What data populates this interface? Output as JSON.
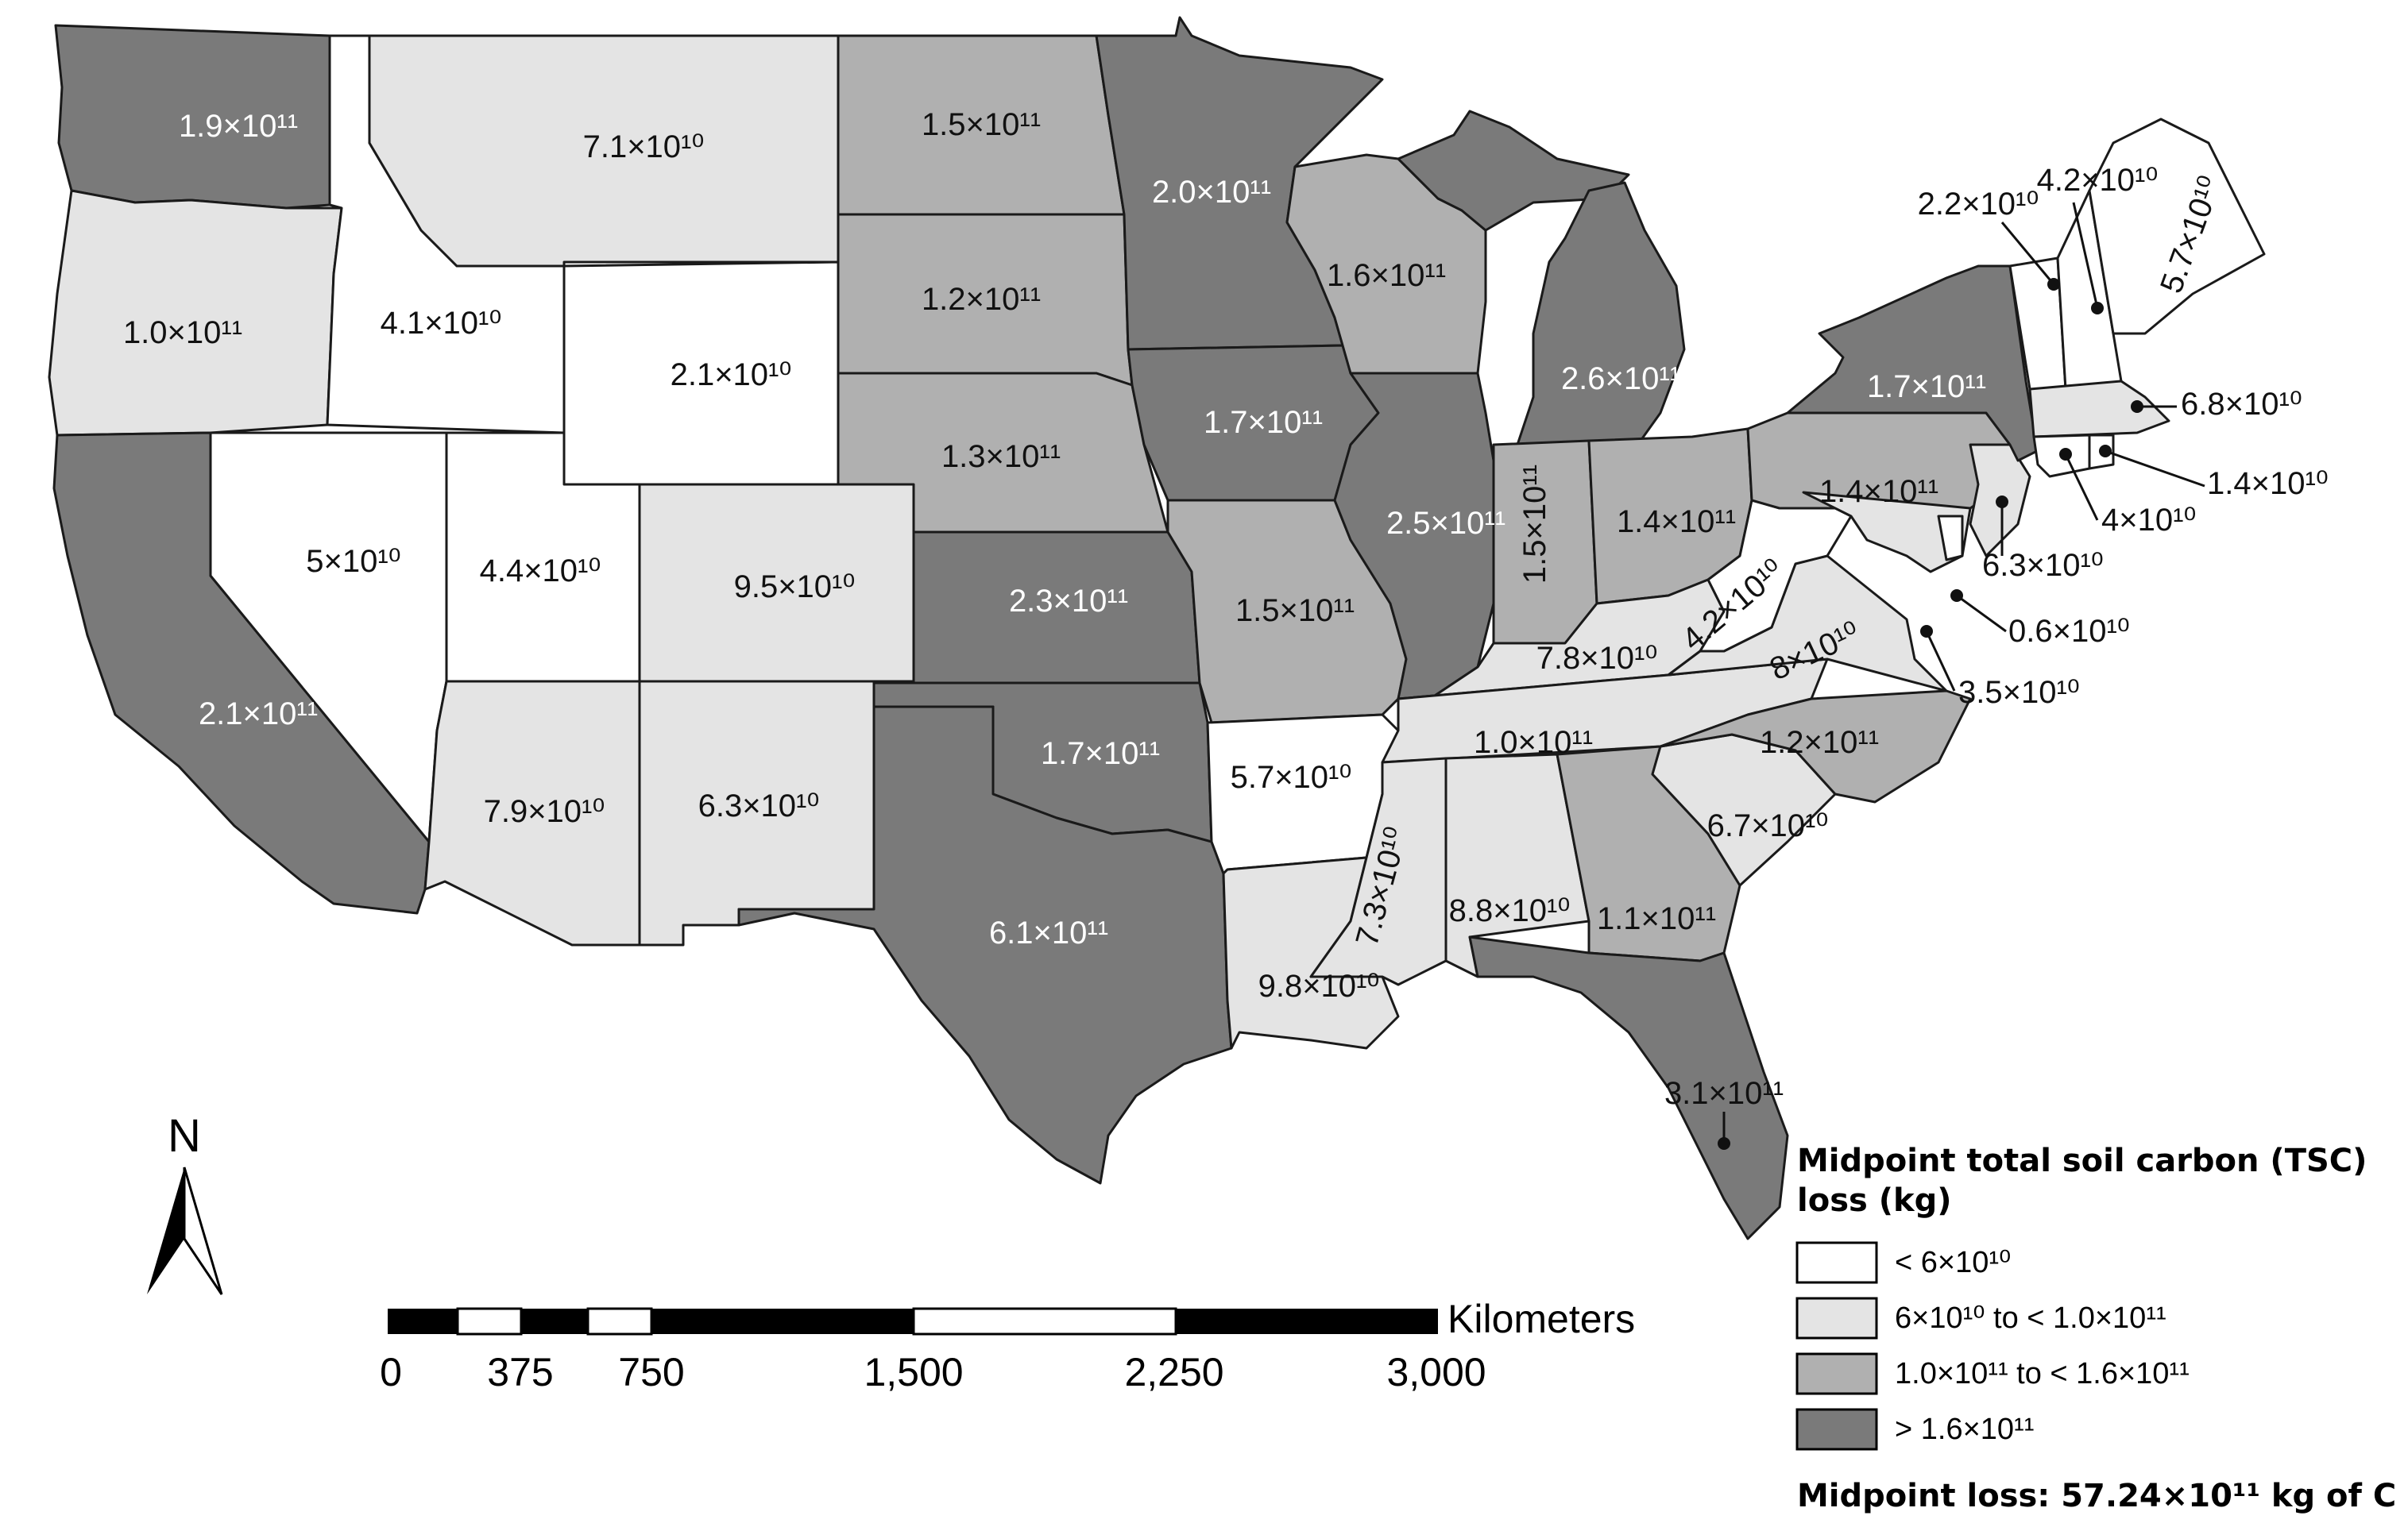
{
  "legend": {
    "title_line1": "Midpoint total soil carbon (TSC)",
    "title_line2": "loss (kg)",
    "classes": [
      {
        "label": "< 6×10¹⁰",
        "color": "#ffffff"
      },
      {
        "label": "6×10¹⁰  to < 1.0×10¹¹",
        "color": "#e4e4e4"
      },
      {
        "label": "1.0×10¹¹  to < 1.6×10¹¹",
        "color": "#b0b0b0"
      },
      {
        "label": "> 1.6×10¹¹",
        "color": "#7a7a7a"
      }
    ],
    "total": "Midpoint loss: 57.24×10¹¹ kg of C"
  },
  "north_arrow": {
    "label": "N"
  },
  "scale_bar": {
    "unit": "Kilometers",
    "ticks": [
      "0",
      "375",
      "750",
      "1,500",
      "2,250",
      "3,000"
    ]
  },
  "states": {
    "wa": "1.9×10¹¹",
    "or": "1.0×10¹¹",
    "ca": "2.1×10¹¹",
    "id": "4.1×10¹⁰",
    "nv": "5×10¹⁰",
    "mt": "7.1×10¹⁰",
    "wy": "2.1×10¹⁰",
    "ut": "4.4×10¹⁰",
    "az": "7.9×10¹⁰",
    "co": "9.5×10¹⁰",
    "nm": "6.3×10¹⁰",
    "nd": "1.5×10¹¹",
    "sd": "1.2×10¹¹",
    "ne": "1.3×10¹¹",
    "ks": "2.3×10¹¹",
    "ok": "1.7×10¹¹",
    "tx": "6.1×10¹¹",
    "mn": "2.0×10¹¹",
    "ia": "1.7×10¹¹",
    "mo": "1.5×10¹¹",
    "ar": "5.7×10¹⁰",
    "la": "9.8×10¹⁰",
    "wi": "1.6×10¹¹",
    "il": "2.5×10¹¹",
    "mi": "2.6×10¹¹",
    "in": "1.5×10¹¹",
    "oh": "1.4×10¹¹",
    "ky": "7.8×10¹⁰",
    "tn": "1.0×10¹¹",
    "ms": "7.3×10¹⁰",
    "al": "8.8×10¹⁰",
    "ga": "1.1×10¹¹",
    "fl": "3.1×10¹¹",
    "sc": "6.7×10¹⁰",
    "nc": "1.2×10¹¹",
    "va": "8×10¹⁰",
    "wv": "4.2×10¹⁰",
    "pa": "1.4×10¹¹",
    "ny": "1.7×10¹¹",
    "vt": "2.2×10¹⁰",
    "nh": "4.2×10¹⁰",
    "me": "5.7×10¹⁰",
    "ma": "6.8×10¹⁰",
    "ri": "1.4×10¹⁰",
    "ct": "4×10¹⁰",
    "nj": "6.3×10¹⁰",
    "de": "0.6×10¹⁰",
    "md": "3.5×10¹⁰"
  }
}
